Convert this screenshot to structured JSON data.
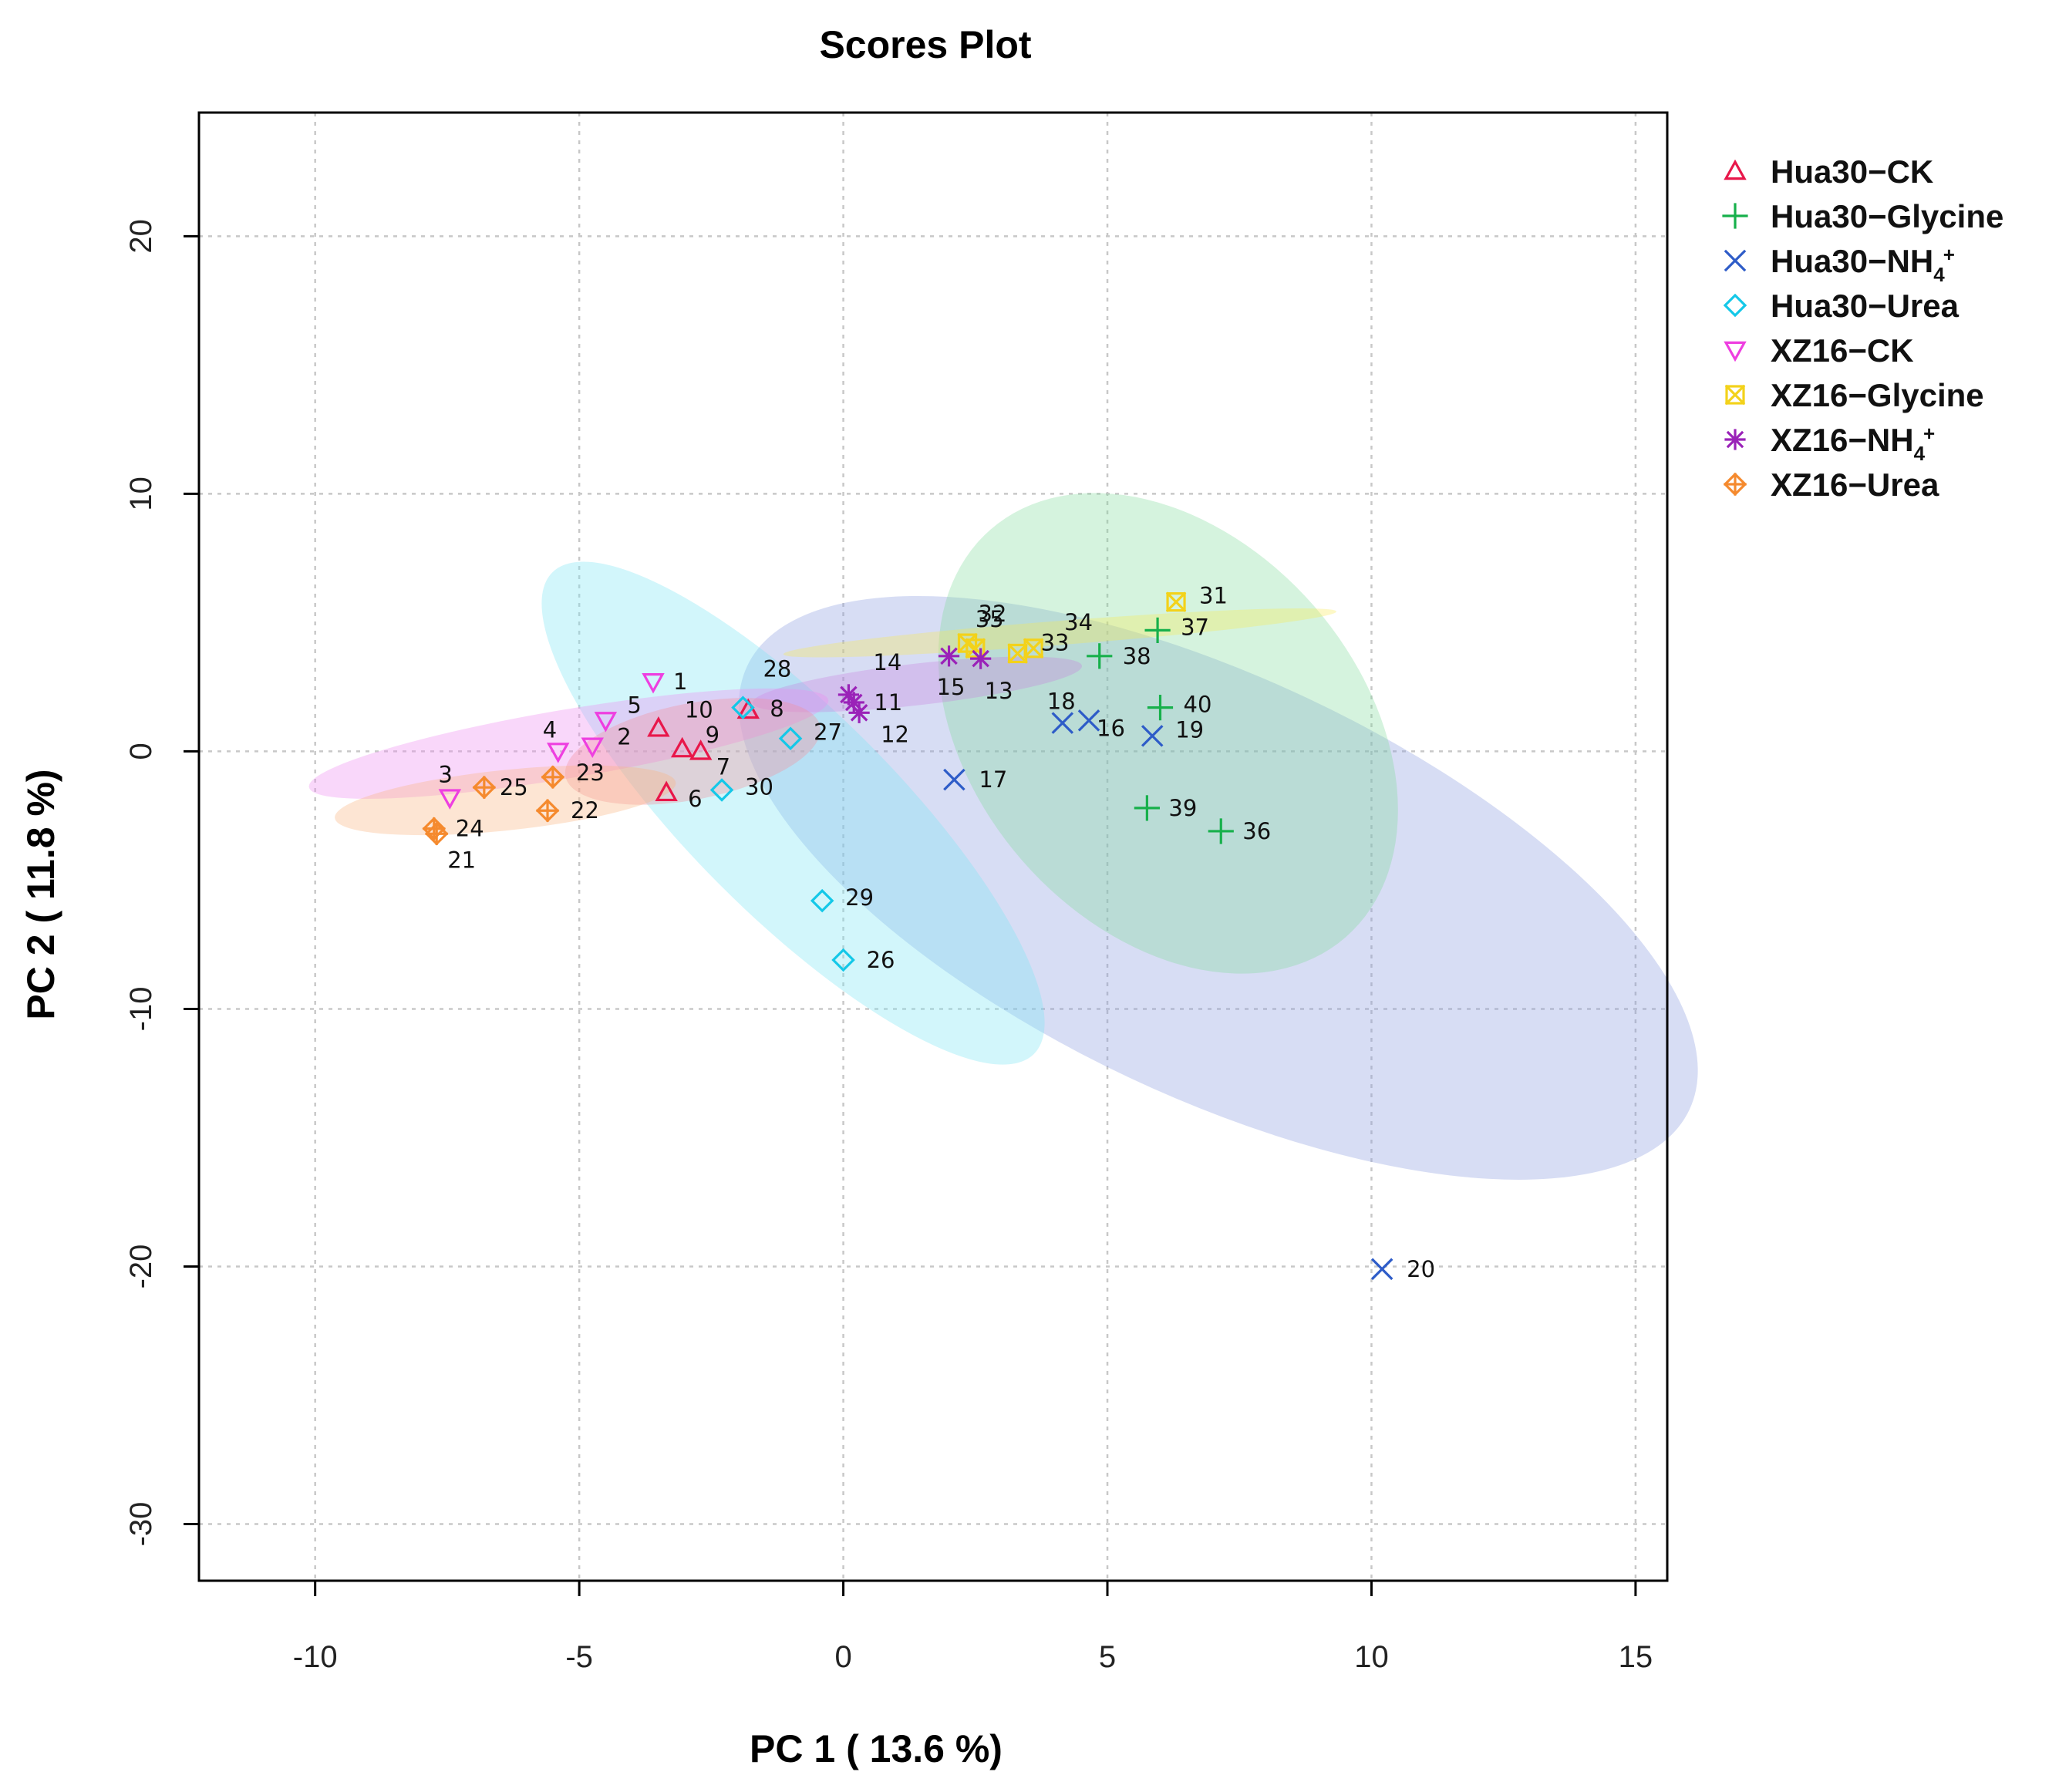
{
  "chart_data": {
    "type": "scatter",
    "title": "Scores Plot",
    "xlabel": "PC 1 ( 13.6 %)",
    "ylabel": "PC 2 ( 11.8 %)",
    "xlim": [
      -12.2,
      15.6
    ],
    "ylim": [
      -32.2,
      24.8
    ],
    "xticks": [
      -10,
      -5,
      0,
      5,
      10,
      15
    ],
    "xtick_labels": [
      "-10",
      "-5",
      "0",
      "5",
      "10",
      "15"
    ],
    "yticks": [
      -30,
      -20,
      -10,
      0,
      10,
      20
    ],
    "ytick_labels": [
      "-30",
      "-20",
      "-10",
      "0",
      "10",
      "20"
    ],
    "grid": true,
    "legend_position": "outside-right",
    "series": [
      {
        "name": "Hua30−CK",
        "legend_base": "Hua30−CK",
        "color": "#E8174A",
        "marker": "triangle-up",
        "points": [
          {
            "id": "6",
            "x": -3.35,
            "y": -1.6
          },
          {
            "id": "7",
            "x": -2.7,
            "y": 0.0
          },
          {
            "id": "8",
            "x": -1.8,
            "y": 1.6
          },
          {
            "id": "9",
            "x": -3.05,
            "y": 0.1
          },
          {
            "id": "10",
            "x": -3.5,
            "y": 0.9
          }
        ]
      },
      {
        "name": "Hua30−Glycine",
        "legend_base": "Hua30−Glycine",
        "color": "#17B04B",
        "marker": "plus",
        "points": [
          {
            "id": "36",
            "x": 7.15,
            "y": -3.1
          },
          {
            "id": "37",
            "x": 5.95,
            "y": 4.7
          },
          {
            "id": "38",
            "x": 4.85,
            "y": 3.7
          },
          {
            "id": "39",
            "x": 5.75,
            "y": -2.2
          },
          {
            "id": "40",
            "x": 6.0,
            "y": 1.7
          }
        ]
      },
      {
        "name": "Hua30−NH4+",
        "legend_base": "Hua30−NH",
        "legend_sub": "4",
        "legend_sup": "+",
        "color": "#2E5CC8",
        "marker": "x",
        "points": [
          {
            "id": "16",
            "x": 4.65,
            "y": 1.2
          },
          {
            "id": "17",
            "x": 2.1,
            "y": -1.1
          },
          {
            "id": "18",
            "x": 4.15,
            "y": 1.1
          },
          {
            "id": "19",
            "x": 5.85,
            "y": 0.6
          },
          {
            "id": "20",
            "x": 10.2,
            "y": -20.1
          }
        ]
      },
      {
        "name": "Hua30−Urea",
        "legend_base": "Hua30−Urea",
        "color": "#14C8E8",
        "marker": "diamond",
        "points": [
          {
            "id": "26",
            "x": 0.0,
            "y": -8.1
          },
          {
            "id": "27",
            "x": -1.0,
            "y": 0.5
          },
          {
            "id": "28",
            "x": -1.9,
            "y": 1.7
          },
          {
            "id": "29",
            "x": -0.4,
            "y": -5.8
          },
          {
            "id": "30",
            "x": -2.3,
            "y": -1.5
          }
        ]
      },
      {
        "name": "XZ16−CK",
        "legend_base": "XZ16−CK",
        "color": "#EE3FE0",
        "marker": "triangle-down",
        "points": [
          {
            "id": "1",
            "x": -3.6,
            "y": 2.7
          },
          {
            "id": "2",
            "x": -4.75,
            "y": 0.2
          },
          {
            "id": "3",
            "x": -7.45,
            "y": -1.8
          },
          {
            "id": "4",
            "x": -5.4,
            "y": 0.0
          },
          {
            "id": "5",
            "x": -4.5,
            "y": 1.2
          }
        ]
      },
      {
        "name": "XZ16−Glycine",
        "legend_base": "XZ16−Glycine",
        "color": "#F3D21A",
        "marker": "square-x",
        "points": [
          {
            "id": "31",
            "x": 6.3,
            "y": 5.8
          },
          {
            "id": "32",
            "x": 2.35,
            "y": 4.2
          },
          {
            "id": "33",
            "x": 3.3,
            "y": 3.8
          },
          {
            "id": "34",
            "x": 3.6,
            "y": 4.0
          },
          {
            "id": "35",
            "x": 2.5,
            "y": 4.0
          }
        ]
      },
      {
        "name": "XZ16−NH4+",
        "legend_base": "XZ16−NH",
        "legend_sub": "4",
        "legend_sup": "+",
        "color": "#9A22B8",
        "marker": "asterisk",
        "points": [
          {
            "id": "11",
            "x": 0.2,
            "y": 1.9
          },
          {
            "id": "12",
            "x": 0.3,
            "y": 1.5
          },
          {
            "id": "13",
            "x": 2.6,
            "y": 3.6
          },
          {
            "id": "14",
            "x": 0.1,
            "y": 2.2
          },
          {
            "id": "15",
            "x": 2.0,
            "y": 3.7
          }
        ]
      },
      {
        "name": "XZ16−Urea",
        "legend_base": "XZ16−Urea",
        "color": "#F58A2E",
        "marker": "diamond-plus",
        "points": [
          {
            "id": "21",
            "x": -7.7,
            "y": -3.2
          },
          {
            "id": "22",
            "x": -5.6,
            "y": -2.3
          },
          {
            "id": "23",
            "x": -5.5,
            "y": -1.0
          },
          {
            "id": "24",
            "x": -7.75,
            "y": -3.0
          },
          {
            "id": "25",
            "x": -6.8,
            "y": -1.4
          }
        ]
      }
    ],
    "ellipses": [
      {
        "series": "Hua30−NH4+",
        "cx": 7.1,
        "cy": -5.3,
        "rx": 12.4,
        "ry": 5.1,
        "angle": -44,
        "color": "#8C9FE0",
        "opacity": 0.35
      },
      {
        "series": "Hua30−Urea",
        "cx": -0.95,
        "cy": -2.4,
        "rx": 10.4,
        "ry": 2.1,
        "angle": -64,
        "color": "#7FE6F4",
        "opacity": 0.35
      },
      {
        "series": "Hua30−Glycine",
        "cx": 6.15,
        "cy": 0.7,
        "rx": 8.6,
        "ry": 3.9,
        "angle": -67,
        "color": "#7CDB98",
        "opacity": 0.32
      },
      {
        "series": "XZ16−Glycine",
        "cx": 4.1,
        "cy": 4.6,
        "rx": 5.3,
        "ry": 0.45,
        "angle": 9,
        "color": "#F8E850",
        "opacity": 0.32
      },
      {
        "series": "XZ16−NH4+",
        "cx": 1.4,
        "cy": 2.6,
        "rx": 3.2,
        "ry": 0.75,
        "angle": 13,
        "color": "#C77CDE",
        "opacity": 0.3
      },
      {
        "series": "XZ16−CK",
        "cx": -5.2,
        "cy": 0.3,
        "rx": 5.2,
        "ry": 1.15,
        "angle": 19,
        "color": "#EE8CF0",
        "opacity": 0.35
      },
      {
        "series": "Hua30−CK",
        "cx": -2.85,
        "cy": 0.0,
        "rx": 2.6,
        "ry": 1.55,
        "angle": 22,
        "color": "#F4909C",
        "opacity": 0.35
      },
      {
        "series": "XZ16−Urea",
        "cx": -6.4,
        "cy": -1.9,
        "rx": 3.3,
        "ry": 1.1,
        "angle": 12,
        "color": "#F9B482",
        "opacity": 0.35
      }
    ]
  }
}
